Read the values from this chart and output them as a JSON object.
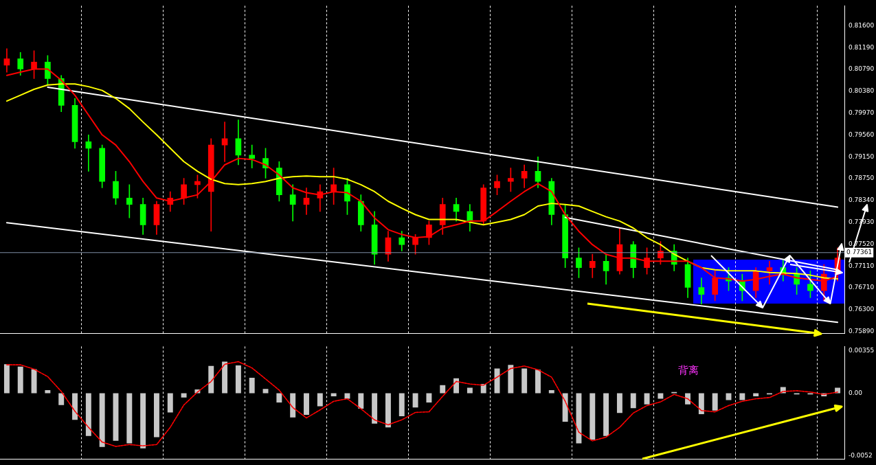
{
  "chart_data": [
    {
      "type": "candlestick",
      "categories": [
        null,
        null,
        null,
        null,
        null,
        null,
        null,
        null,
        null,
        null,
        null,
        null,
        null,
        null,
        null,
        null,
        null,
        null,
        null,
        null,
        null,
        null,
        null,
        null,
        null,
        null,
        null,
        null,
        null,
        null,
        null,
        null,
        null,
        null,
        null,
        null,
        null,
        null,
        null,
        null,
        null,
        null,
        null,
        null,
        null,
        null,
        null,
        null,
        null,
        null,
        null,
        null,
        null,
        null,
        null,
        null,
        null,
        null,
        null,
        null,
        null,
        null
      ],
      "ohlc": [
        [
          0.8086,
          0.8117,
          0.8073,
          0.8098
        ],
        [
          0.8098,
          0.811,
          0.8067,
          0.8079
        ],
        [
          0.8079,
          0.8113,
          0.8061,
          0.8092
        ],
        [
          0.8092,
          0.8104,
          0.8049,
          0.8061
        ],
        [
          0.8061,
          0.8067,
          0.7999,
          0.8011
        ],
        [
          0.8011,
          0.8024,
          0.7931,
          0.7943
        ],
        [
          0.7943,
          0.7956,
          0.7888,
          0.7931
        ],
        [
          0.7931,
          0.7937,
          0.7857,
          0.7869
        ],
        [
          0.7869,
          0.7888,
          0.7826,
          0.7838
        ],
        [
          0.7838,
          0.7863,
          0.7801,
          0.7826
        ],
        [
          0.7826,
          0.7838,
          0.777,
          0.7788
        ],
        [
          0.7788,
          0.7832,
          0.777,
          0.7826
        ],
        [
          0.7826,
          0.785,
          0.7813,
          0.7838
        ],
        [
          0.7838,
          0.7875,
          0.7826,
          0.7863
        ],
        [
          0.7863,
          0.7881,
          0.7838,
          0.7869
        ],
        [
          0.785,
          0.7949,
          0.7776,
          0.7937
        ],
        [
          0.7937,
          0.798,
          0.7906,
          0.7949
        ],
        [
          0.7949,
          0.7984,
          0.79,
          0.7918
        ],
        [
          0.7918,
          0.7937,
          0.7894,
          0.7912
        ],
        [
          0.7912,
          0.7931,
          0.7875,
          0.7894
        ],
        [
          0.7894,
          0.7906,
          0.7832,
          0.7844
        ],
        [
          0.7844,
          0.7863,
          0.7795,
          0.7826
        ],
        [
          0.7826,
          0.7857,
          0.7807,
          0.7838
        ],
        [
          0.7838,
          0.7863,
          0.7813,
          0.785
        ],
        [
          0.785,
          0.7894,
          0.7826,
          0.7863
        ],
        [
          0.7863,
          0.7875,
          0.7807,
          0.7832
        ],
        [
          0.7832,
          0.7844,
          0.7776,
          0.7788
        ],
        [
          0.7788,
          0.7813,
          0.7714,
          0.7733
        ],
        [
          0.7733,
          0.7776,
          0.772,
          0.7764
        ],
        [
          0.7764,
          0.7776,
          0.7739,
          0.7751
        ],
        [
          0.7751,
          0.777,
          0.7733,
          0.7764
        ],
        [
          0.7764,
          0.7795,
          0.7751,
          0.7788
        ],
        [
          0.7788,
          0.7838,
          0.777,
          0.7826
        ],
        [
          0.7826,
          0.7838,
          0.7795,
          0.7813
        ],
        [
          0.7813,
          0.7826,
          0.7776,
          0.7795
        ],
        [
          0.7795,
          0.7863,
          0.7788,
          0.7857
        ],
        [
          0.7857,
          0.7881,
          0.7844,
          0.7869
        ],
        [
          0.7869,
          0.7894,
          0.785,
          0.7875
        ],
        [
          0.7875,
          0.79,
          0.7857,
          0.7888
        ],
        [
          0.7888,
          0.7915,
          0.7857,
          0.7869
        ],
        [
          0.7869,
          0.7875,
          0.7788,
          0.7807
        ],
        [
          0.7807,
          0.7826,
          0.7708,
          0.7726
        ],
        [
          0.7726,
          0.7745,
          0.7689,
          0.7708
        ],
        [
          0.7708,
          0.7733,
          0.7689,
          0.772
        ],
        [
          0.772,
          0.7733,
          0.7677,
          0.7702
        ],
        [
          0.7702,
          0.7782,
          0.7696,
          0.7751
        ],
        [
          0.7751,
          0.7757,
          0.7689,
          0.7708
        ],
        [
          0.7708,
          0.7745,
          0.7696,
          0.7726
        ],
        [
          0.7726,
          0.7757,
          0.7714,
          0.7739
        ],
        [
          0.7739,
          0.7751,
          0.7702,
          0.7714
        ],
        [
          0.7714,
          0.7726,
          0.7652,
          0.7671
        ],
        [
          0.7671,
          0.7689,
          0.764,
          0.7658
        ],
        [
          0.7658,
          0.7702,
          0.7646,
          0.7689
        ],
        [
          0.7689,
          0.7708,
          0.7665,
          0.7683
        ],
        [
          0.7683,
          0.7696,
          0.7646,
          0.7665
        ],
        [
          0.7665,
          0.7708,
          0.7652,
          0.7702
        ],
        [
          0.7702,
          0.772,
          0.7677,
          0.7708
        ],
        [
          0.7708,
          0.7723,
          0.7683,
          0.7696
        ],
        [
          0.7696,
          0.7708,
          0.7658,
          0.7677
        ],
        [
          0.7677,
          0.7702,
          0.7652,
          0.7665
        ],
        [
          0.7665,
          0.7714,
          0.7646,
          0.7696
        ],
        [
          0.7696,
          0.7745,
          0.7683,
          0.7726
        ]
      ],
      "colors": [
        "#ff0000",
        "#00ff00",
        "#ff0000",
        "#00ff00",
        "#00ff00",
        "#00ff00",
        "#00ff00",
        "#00ff00",
        "#00ff00",
        "#00ff00",
        "#00ff00",
        "#ff0000",
        "#ff0000",
        "#ff0000",
        "#ff0000",
        "#ff0000",
        "#ff0000",
        "#00ff00",
        "#00ff00",
        "#00ff00",
        "#00ff00",
        "#00ff00",
        "#ff0000",
        "#ff0000",
        "#ff0000",
        "#00ff00",
        "#00ff00",
        "#00ff00",
        "#ff0000",
        "#00ff00",
        "#ff0000",
        "#ff0000",
        "#ff0000",
        "#00ff00",
        "#00ff00",
        "#ff0000",
        "#ff0000",
        "#ff0000",
        "#ff0000",
        "#00ff00",
        "#00ff00",
        "#00ff00",
        "#00ff00",
        "#ff0000",
        "#00ff00",
        "#ff0000",
        "#00ff00",
        "#ff0000",
        "#ff0000",
        "#00ff00",
        "#00ff00",
        "#00ff00",
        "#ff0000",
        "#00ff00",
        "#00ff00",
        "#ff0000",
        "#ff0000",
        "#00ff00",
        "#00ff00",
        "#00ff00",
        "#ff0000",
        "#ff0000"
      ],
      "series": [
        {
          "type": "line",
          "color": "#ff0000",
          "values": [
            0.8067,
            0.8073,
            0.8079,
            0.8079,
            0.8058,
            0.803,
            0.7993,
            0.7956,
            0.7937,
            0.7906,
            0.7869,
            0.7838,
            0.7832,
            0.7838,
            0.7844,
            0.7869,
            0.79,
            0.7912,
            0.791,
            0.79,
            0.7881,
            0.7857,
            0.7848,
            0.7844,
            0.785,
            0.7848,
            0.7832,
            0.7801,
            0.7779,
            0.777,
            0.7764,
            0.7766,
            0.7782,
            0.7788,
            0.7795,
            0.7795,
            0.7813,
            0.7832,
            0.785,
            0.7865,
            0.785,
            0.7807,
            0.7776,
            0.7751,
            0.7733,
            0.7726,
            0.7726,
            0.772,
            0.772,
            0.772,
            0.772,
            0.7708,
            0.7689,
            0.7687,
            0.7683,
            0.7686,
            0.7692,
            0.7696,
            0.7689,
            0.7686,
            0.7683,
            0.7692
          ]
        },
        {
          "type": "line",
          "color": "#ffff00",
          "values": [
            0.8019,
            0.803,
            0.8041,
            0.8049,
            0.8051,
            0.8051,
            0.8046,
            0.8039,
            0.8024,
            0.8005,
            0.798,
            0.7956,
            0.7931,
            0.7906,
            0.7888,
            0.7873,
            0.7865,
            0.7863,
            0.7865,
            0.7869,
            0.7875,
            0.7878,
            0.7879,
            0.7878,
            0.7878,
            0.7873,
            0.7863,
            0.785,
            0.7832,
            0.7819,
            0.7807,
            0.7798,
            0.7798,
            0.7798,
            0.7793,
            0.7788,
            0.7793,
            0.7798,
            0.7807,
            0.7823,
            0.7828,
            0.7826,
            0.7823,
            0.7813,
            0.7803,
            0.7795,
            0.7782,
            0.7764,
            0.7751,
            0.7733,
            0.772,
            0.7708,
            0.7704,
            0.7702,
            0.7702,
            0.7702,
            0.7699,
            0.7698,
            0.7697,
            0.7694,
            0.7689,
            0.7687
          ]
        },
        {
          "type": "line",
          "color": "#ffffff",
          "values": [
            null,
            null,
            null,
            0.8045,
            null,
            null,
            null,
            null,
            null,
            null,
            null,
            null,
            null,
            null,
            null,
            null,
            null,
            null,
            null,
            null,
            null,
            null,
            null,
            null,
            null,
            null,
            null,
            null,
            null,
            null,
            null,
            null,
            null,
            null,
            null,
            null,
            null,
            null,
            null,
            null,
            null,
            null,
            null,
            null,
            null,
            null,
            null,
            null,
            null,
            null,
            null,
            null,
            null,
            null,
            null,
            null,
            null,
            null,
            null,
            null,
            null,
            0.7821
          ]
        },
        {
          "type": "line",
          "color": "#ffffff",
          "values": [
            0.7792,
            null,
            null,
            null,
            null,
            null,
            null,
            null,
            null,
            null,
            null,
            null,
            null,
            null,
            null,
            null,
            null,
            null,
            null,
            null,
            null,
            null,
            null,
            null,
            null,
            null,
            null,
            null,
            null,
            null,
            null,
            null,
            null,
            null,
            null,
            null,
            null,
            null,
            null,
            null,
            null,
            null,
            null,
            null,
            null,
            null,
            null,
            null,
            null,
            null,
            null,
            null,
            null,
            null,
            null,
            null,
            null,
            null,
            null,
            null,
            null,
            0.7606
          ]
        },
        {
          "type": "line",
          "color": "#ffffff",
          "values": [
            null,
            null,
            null,
            null,
            null,
            null,
            null,
            null,
            null,
            null,
            null,
            null,
            null,
            null,
            null,
            null,
            null,
            null,
            null,
            null,
            null,
            null,
            null,
            null,
            null,
            null,
            null,
            null,
            null,
            null,
            null,
            null,
            null,
            null,
            null,
            null,
            null,
            null,
            null,
            null,
            null,
            0.7802,
            null,
            null,
            null,
            null,
            null,
            null,
            null,
            null,
            null,
            null,
            null,
            null,
            null,
            null,
            null,
            null,
            null,
            null,
            null,
            0.7704
          ]
        }
      ],
      "ylim": [
        0.7585,
        0.8197
      ],
      "yticks": [
        {
          "value": 0.816,
          "label": "0.81600"
        },
        {
          "value": 0.8119,
          "label": "0.81190"
        },
        {
          "value": 0.8079,
          "label": "0.80790"
        },
        {
          "value": 0.8038,
          "label": "0.80380"
        },
        {
          "value": 0.7997,
          "label": "0.79970"
        },
        {
          "value": 0.7956,
          "label": "0.79560"
        },
        {
          "value": 0.7915,
          "label": "0.79150"
        },
        {
          "value": 0.7875,
          "label": "0.78750"
        },
        {
          "value": 0.7834,
          "label": "0.78340"
        },
        {
          "value": 0.7793,
          "label": "0.77930"
        },
        {
          "value": 0.7752,
          "label": "0.77520"
        },
        {
          "value": 0.7711,
          "label": "0.77110"
        },
        {
          "value": 0.7671,
          "label": "0.76710"
        },
        {
          "value": 0.763,
          "label": "0.76300"
        },
        {
          "value": 0.7589,
          "label": "0.75890"
        }
      ],
      "ref_lines": [
        {
          "axis": "y",
          "value": 0.77361,
          "label": "0.77361",
          "color": "#8090a8"
        }
      ],
      "grid": "x"
    },
    {
      "type": "bar",
      "categories": [
        null,
        null,
        null,
        null,
        null,
        null,
        null,
        null,
        null,
        null,
        null,
        null,
        null,
        null,
        null,
        null,
        null,
        null,
        null,
        null,
        null,
        null,
        null,
        null,
        null,
        null,
        null,
        null,
        null,
        null,
        null,
        null,
        null,
        null,
        null,
        null,
        null,
        null,
        null,
        null,
        null,
        null,
        null,
        null,
        null,
        null,
        null,
        null,
        null,
        null,
        null,
        null,
        null,
        null,
        null,
        null,
        null,
        null,
        null,
        null,
        null,
        null
      ],
      "series": [
        {
          "type": "bar",
          "color": "#c8c8c8",
          "values": [
            0.00242,
            0.00222,
            0.00201,
            0.00026,
            -0.00098,
            -0.00222,
            -0.00356,
            -0.00448,
            -0.00397,
            -0.00418,
            -0.00459,
            -0.00366,
            -0.0016,
            -0.00036,
            0.00031,
            0.00227,
            0.00263,
            0.00232,
            0.00129,
            0.00036,
            -0.00077,
            -0.00201,
            -0.0018,
            -0.00108,
            -0.00026,
            -0.00046,
            -0.00129,
            -0.00253,
            -0.00284,
            -0.00191,
            -0.00119,
            -0.00077,
            0.00067,
            0.00124,
            0.00046,
            0.00077,
            0.00206,
            0.00237,
            0.00206,
            0.00196,
            0.00026,
            -0.00237,
            -0.00418,
            -0.00387,
            -0.00356,
            -0.00165,
            -0.00124,
            -0.00093,
            -0.00046,
            0.0001,
            -0.00093,
            -0.00175,
            -0.00144,
            -0.00057,
            -0.00057,
            -0.00026,
            -0.0001,
            0.00052,
            -0.0001,
            -0.0001,
            -0.00026,
            0.00046
          ]
        },
        {
          "type": "line",
          "color": "#ff0000",
          "line_style": "dashed",
          "values": [
            0.00237,
            0.00237,
            0.00201,
            0.00139,
            0.00015,
            -0.0015,
            -0.00284,
            -0.00407,
            -0.00443,
            -0.00428,
            -0.00438,
            -0.00428,
            -0.00284,
            -0.00098,
            0.0001,
            0.00098,
            0.00242,
            0.00263,
            0.00211,
            0.00119,
            0.00026,
            -0.00119,
            -0.00206,
            -0.00139,
            -0.00067,
            -0.00046,
            -0.00129,
            -0.00222,
            -0.00263,
            -0.00222,
            -0.0016,
            -0.00155,
            -0.00026,
            0.00098,
            0.00077,
            0.00067,
            0.00134,
            0.00206,
            0.00227,
            0.00196,
            0.00134,
            -0.00067,
            -0.00325,
            -0.00397,
            -0.00366,
            -0.00284,
            -0.00165,
            -0.00103,
            -0.00072,
            -0.0001,
            -0.00046,
            -0.00144,
            -0.00155,
            -0.00103,
            -0.00067,
            -0.00046,
            -0.00036,
            0.00015,
            0.00021,
            0.0001,
            -0.0001,
            0.0001
          ]
        }
      ],
      "ylim": [
        -0.0055,
        0.0039
      ],
      "yticks": [
        {
          "value": 0.00355,
          "label": "0.00355"
        },
        {
          "value": 0,
          "label": "0.00"
        },
        {
          "value": -0.0052,
          "label": "-0.0052"
        }
      ],
      "annotations": [
        "背离"
      ],
      "grid": "x"
    }
  ]
}
